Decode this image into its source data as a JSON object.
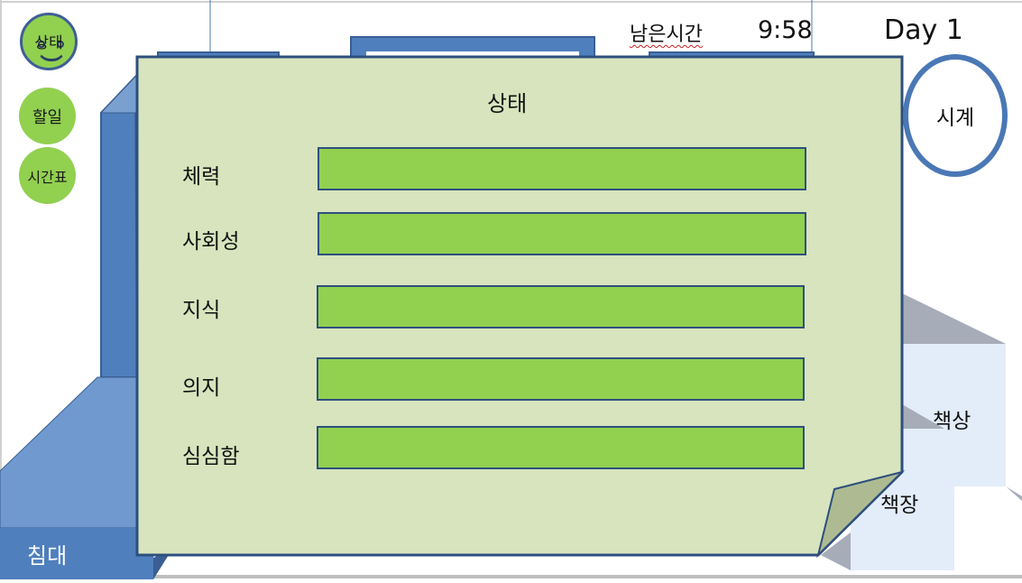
{
  "header": {
    "remaining_time_label": "남은시간",
    "remaining_time_value": "9:58",
    "day_label": "Day 1"
  },
  "side_buttons": {
    "status": "상태",
    "todo": "할일",
    "schedule": "시간표"
  },
  "clock": {
    "label": "시계"
  },
  "room": {
    "bed": "침대",
    "desk": "책상",
    "bookshelf": "책장"
  },
  "status_panel": {
    "title": "상태",
    "stats": [
      {
        "label": "체력",
        "value": 1.0
      },
      {
        "label": "사회성",
        "value": 1.0
      },
      {
        "label": "지식",
        "value": 1.0
      },
      {
        "label": "의지",
        "value": 1.0
      },
      {
        "label": "심심함",
        "value": 1.0
      }
    ]
  },
  "colors": {
    "accent_blue": "#4a78b5",
    "stat_green": "#92d050",
    "panel_bg": "#d7e4bd"
  }
}
